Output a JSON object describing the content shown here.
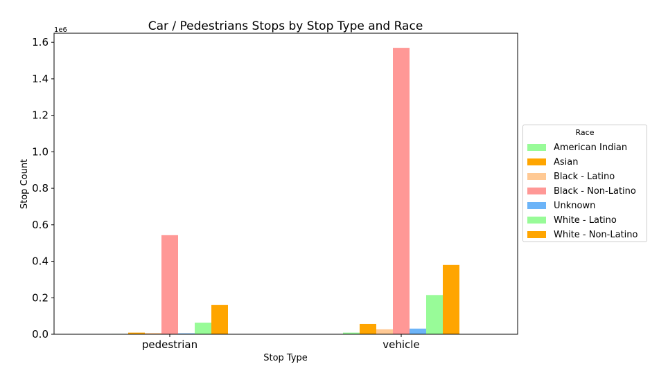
{
  "chart_data": {
    "type": "bar",
    "title": "Car / Pedestrians Stops by Stop Type and Race",
    "xlabel": "Stop Type",
    "ylabel": "Stop Count",
    "y_multiplier_label": "1e6",
    "categories": [
      "pedestrian",
      "vehicle"
    ],
    "ylim": [
      0,
      1650000
    ],
    "yticks": [
      0,
      200000,
      400000,
      600000,
      800000,
      1000000,
      1200000,
      1400000,
      1600000
    ],
    "ytick_labels": [
      "0.0",
      "0.2",
      "0.4",
      "0.6",
      "0.8",
      "1.0",
      "1.2",
      "1.4",
      "1.6"
    ],
    "grid": false,
    "legend_title": "Race",
    "legend_position": "right",
    "series": [
      {
        "name": "American Indian",
        "color": "#98fb98",
        "values": [
          2000,
          9000
        ]
      },
      {
        "name": "Asian",
        "color": "#ffa500",
        "values": [
          9000,
          57000
        ]
      },
      {
        "name": "Black - Latino",
        "color": "#ffc994",
        "values": [
          7000,
          27000
        ]
      },
      {
        "name": "Black - Non-Latino",
        "color": "#ff9896",
        "values": [
          543000,
          1570000
        ]
      },
      {
        "name": "Unknown",
        "color": "#6cb4f8",
        "values": [
          5000,
          31000
        ]
      },
      {
        "name": "White - Latino",
        "color": "#98fb98",
        "values": [
          63000,
          215000
        ]
      },
      {
        "name": "White - Non-Latino",
        "color": "#ffa500",
        "values": [
          160000,
          380000
        ]
      }
    ]
  }
}
